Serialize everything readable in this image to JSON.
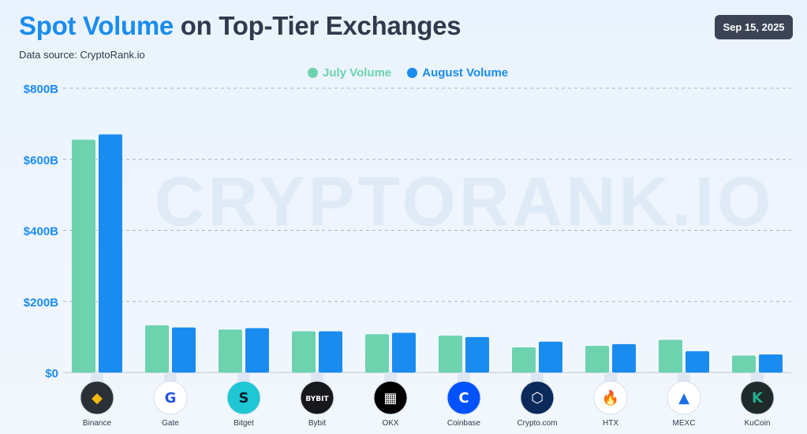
{
  "header": {
    "title_accent": "Spot Volume",
    "title_rest": " on Top-Tier Exchanges",
    "subtitle": "Data source: CryptoRank.io",
    "date": "Sep 15, 2025",
    "watermark": "CRYPTORANK.IO"
  },
  "colors": {
    "july": "#6dd3ae",
    "august": "#1a8cf0",
    "accent": "#1a8cf0",
    "badge": "#3b4355"
  },
  "chart_data": {
    "type": "bar",
    "title": "Spot Volume on Top-Tier Exchanges",
    "xlabel": "",
    "ylabel": "",
    "ylim": [
      0,
      800
    ],
    "yticks": [
      0,
      200,
      400,
      600,
      800
    ],
    "ytick_labels": [
      "$0",
      "$200B",
      "$400B",
      "$600B",
      "$800B"
    ],
    "grid": true,
    "legend_position": "top-center",
    "categories": [
      "Binance",
      "Gate",
      "Bitget",
      "Bybit",
      "OKX",
      "Coinbase",
      "Crypto.com",
      "HTX",
      "MEXC",
      "KuCoin"
    ],
    "series": [
      {
        "name": "July Volume",
        "color": "#6dd3ae",
        "values": [
          655,
          133,
          121,
          116,
          108,
          104,
          71,
          75,
          92,
          48
        ]
      },
      {
        "name": "August Volume",
        "color": "#1a8cf0",
        "values": [
          670,
          127,
          125,
          116,
          112,
          100,
          87,
          80,
          60,
          51
        ]
      }
    ],
    "logos": [
      {
        "bg": "#2b2f36",
        "fg": "#f0b90b",
        "glyph": "◆",
        "icon": "binance-logo-icon"
      },
      {
        "bg": "#ffffff",
        "fg": "#2354e6",
        "glyph": "G",
        "icon": "gate-logo-icon"
      },
      {
        "bg": "#1fc7d4",
        "fg": "#0b1f2e",
        "glyph": "S",
        "icon": "bitget-logo-icon"
      },
      {
        "bg": "#17181c",
        "fg": "#ffffff",
        "glyph": "BYBIT",
        "icon": "bybit-logo-icon"
      },
      {
        "bg": "#000000",
        "fg": "#ffffff",
        "glyph": "▦",
        "icon": "okx-logo-icon"
      },
      {
        "bg": "#0052ff",
        "fg": "#ffffff",
        "glyph": "C",
        "icon": "coinbase-logo-icon"
      },
      {
        "bg": "#0b2a5b",
        "fg": "#ffffff",
        "glyph": "⬡",
        "icon": "crypto-com-logo-icon"
      },
      {
        "bg": "#ffffff",
        "fg": "#1a5fd6",
        "glyph": "🔥",
        "icon": "htx-logo-icon"
      },
      {
        "bg": "#ffffff",
        "fg": "#1a6fe8",
        "glyph": "▲",
        "icon": "mexc-logo-icon"
      },
      {
        "bg": "#1f2b2b",
        "fg": "#24ae8f",
        "glyph": "K",
        "icon": "kucoin-logo-icon"
      }
    ]
  }
}
